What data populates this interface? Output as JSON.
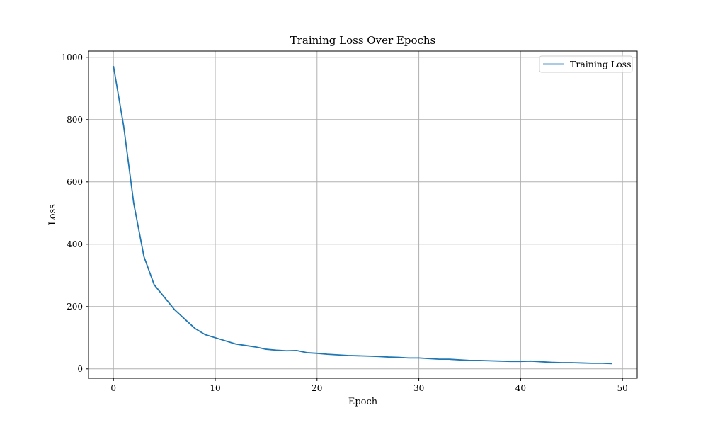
{
  "chart_data": {
    "type": "line",
    "title": "Training Loss Over Epochs",
    "xlabel": "Epoch",
    "ylabel": "Loss",
    "xlim": [
      -2.45,
      51.45
    ],
    "ylim": [
      -30,
      1020
    ],
    "xticks": [
      0,
      10,
      20,
      30,
      40,
      50
    ],
    "yticks": [
      0,
      200,
      400,
      600,
      800,
      1000
    ],
    "grid": true,
    "legend": "top-right",
    "series": [
      {
        "name": "Training Loss",
        "color": "#1f77b4",
        "x": [
          0,
          1,
          2,
          3,
          4,
          5,
          6,
          7,
          8,
          9,
          10,
          11,
          12,
          13,
          14,
          15,
          16,
          17,
          18,
          19,
          20,
          21,
          22,
          23,
          24,
          25,
          26,
          27,
          28,
          29,
          30,
          31,
          32,
          33,
          34,
          35,
          36,
          37,
          38,
          39,
          40,
          41,
          42,
          43,
          44,
          45,
          46,
          47,
          48,
          49
        ],
        "values": [
          972,
          780,
          530,
          360,
          270,
          230,
          190,
          160,
          130,
          110,
          100,
          90,
          80,
          75,
          70,
          63,
          60,
          58,
          59,
          52,
          50,
          47,
          45,
          43,
          42,
          41,
          40,
          38,
          37,
          35,
          35,
          33,
          31,
          31,
          29,
          27,
          27,
          26,
          25,
          24,
          24,
          25,
          23,
          21,
          20,
          20,
          19,
          18,
          18,
          17
        ]
      }
    ]
  }
}
